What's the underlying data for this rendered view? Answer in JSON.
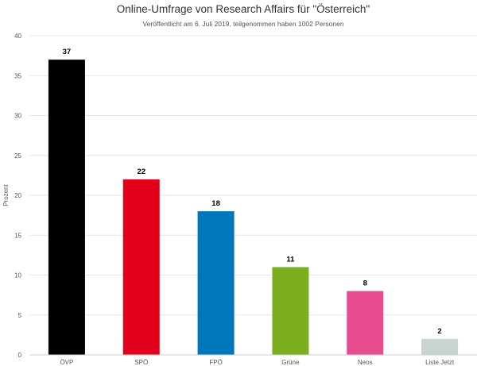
{
  "chart_data": {
    "type": "bar",
    "title": "Online-Umfrage von Research Affairs für \"Österreich\"",
    "subtitle": "Veröffentlicht am 6. Juli 2019, teilgenommen haben 1002 Personen",
    "xlabel": "",
    "ylabel": "Prozent",
    "ylim": [
      0,
      40
    ],
    "yticks": [
      0,
      5,
      10,
      15,
      20,
      25,
      30,
      35,
      40
    ],
    "grid": true,
    "categories": [
      "ÖVP",
      "SPÖ",
      "FPÖ",
      "Grüne",
      "Neos",
      "Liste Jetzt"
    ],
    "values": [
      37,
      22,
      18,
      11,
      8,
      2
    ],
    "colors": [
      "#000000",
      "#e2001a",
      "#0077bb",
      "#7aae1f",
      "#e84c8f",
      "#c9d3d1"
    ]
  }
}
